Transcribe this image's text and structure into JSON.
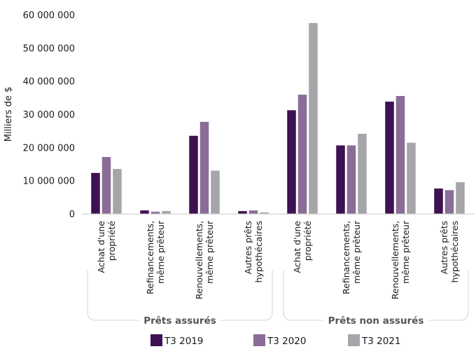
{
  "chart_data": {
    "type": "bar",
    "title": "",
    "xlabel": "",
    "ylabel": "Milliers de $",
    "ylim": [
      0,
      60000000
    ],
    "yticks": [
      0,
      10000000,
      20000000,
      30000000,
      40000000,
      50000000,
      60000000
    ],
    "ytick_labels": [
      "0",
      "10 000 000",
      "20 000 000",
      "30 000 000",
      "40 000 000",
      "50 000 000",
      "60 000 000"
    ],
    "grid": false,
    "legend_position": "bottom",
    "categories": [
      [
        "Achat d'une",
        "propriété"
      ],
      [
        "Refinancements,",
        "même prêteur"
      ],
      [
        "Renouvellements,",
        "même prêteur"
      ],
      [
        "Autres prêts",
        "hypothécaires"
      ],
      [
        "Achat d'une",
        "propriété"
      ],
      [
        "Refinancements,",
        "même prêteur"
      ],
      [
        "Renouvellements,",
        "même prêteur"
      ],
      [
        "Autres prêts",
        "hypothécaires"
      ]
    ],
    "groups": [
      {
        "label": "Prêts assurés",
        "categories": [
          0,
          1,
          2,
          3
        ]
      },
      {
        "label": "Prêts non assurés",
        "categories": [
          4,
          5,
          6,
          7
        ]
      }
    ],
    "series": [
      {
        "name": "T3 2019",
        "color": "#3e1152",
        "values": [
          12300000,
          1000000,
          23500000,
          800000,
          31200000,
          20600000,
          33800000,
          7600000
        ]
      },
      {
        "name": "T3 2020",
        "color": "#8a6d96",
        "values": [
          17100000,
          600000,
          27700000,
          1000000,
          35900000,
          20600000,
          35500000,
          7100000
        ]
      },
      {
        "name": "T3 2021",
        "color": "#a5a5aa",
        "values": [
          13500000,
          800000,
          13000000,
          400000,
          57500000,
          24100000,
          21400000,
          9500000
        ]
      }
    ]
  }
}
